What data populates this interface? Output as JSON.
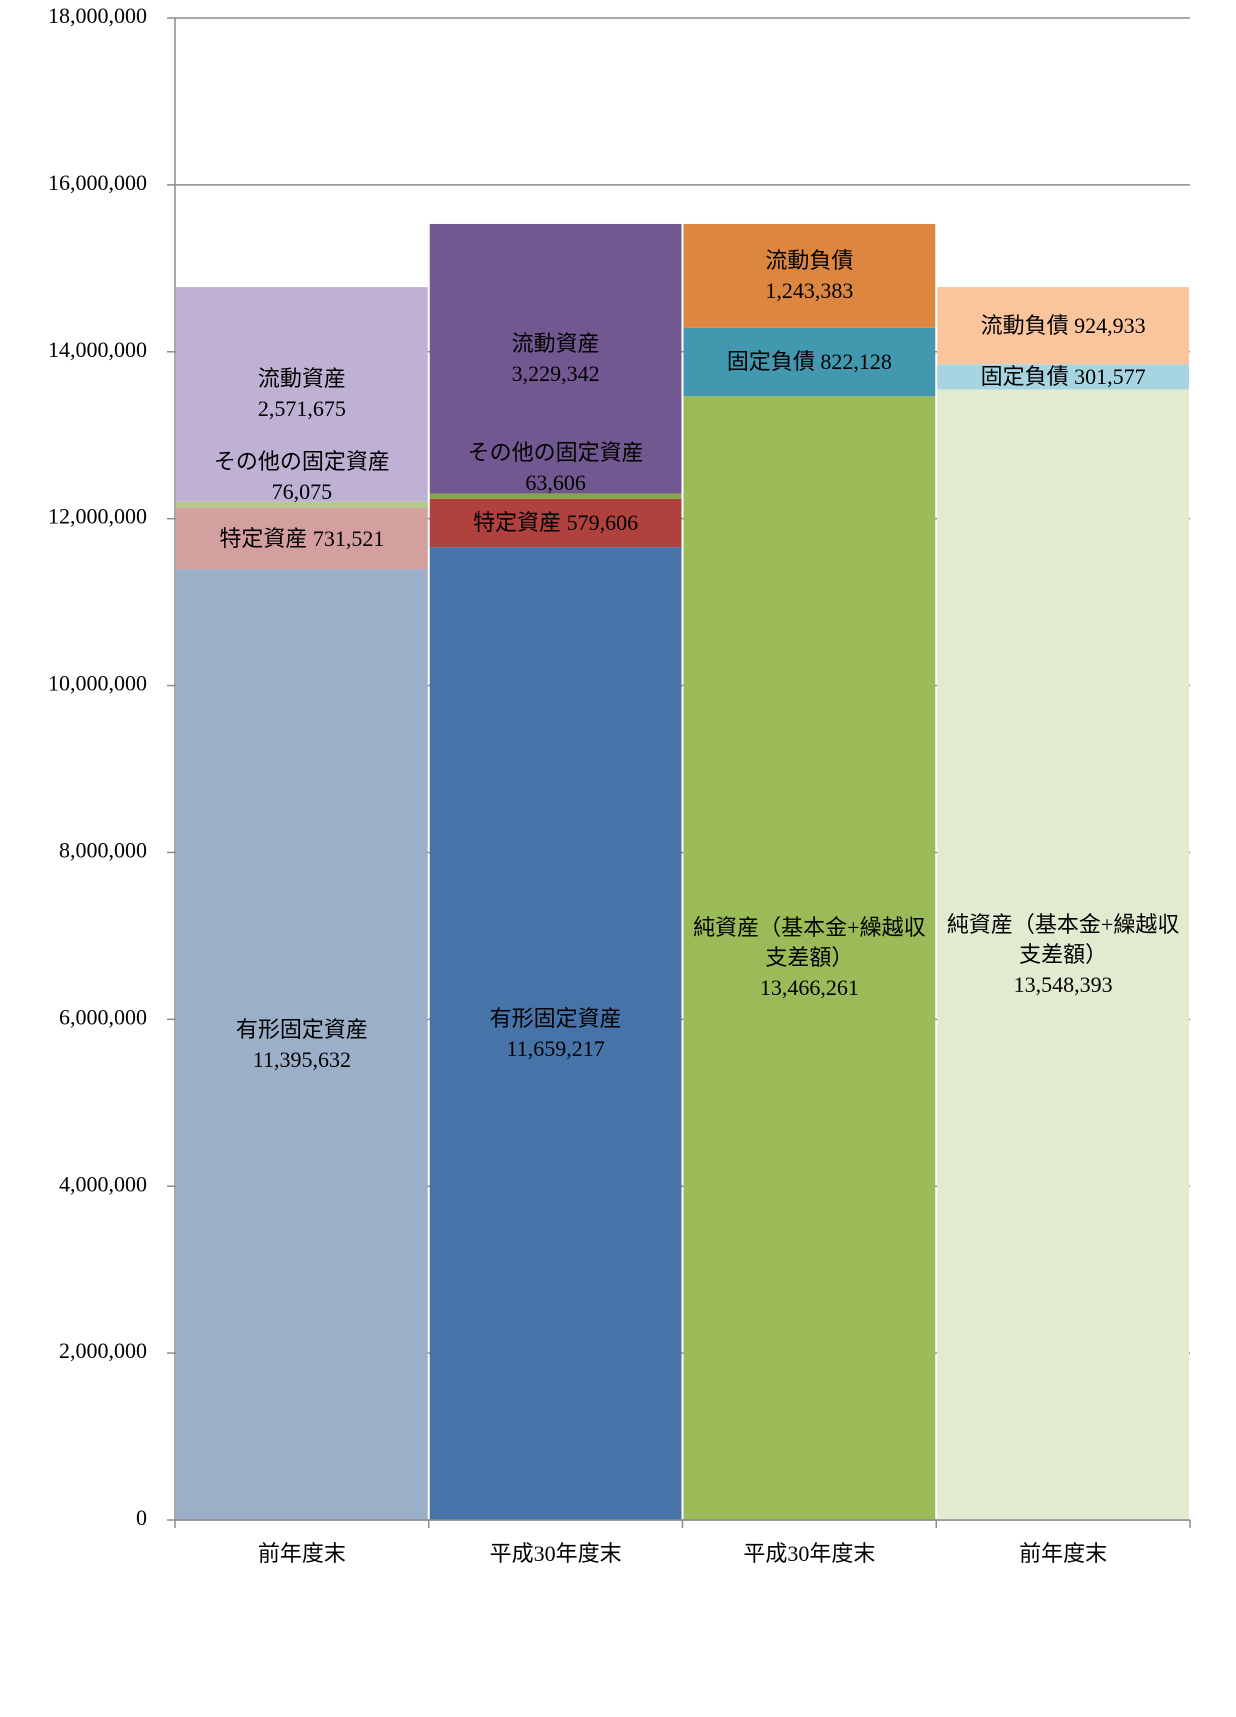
{
  "chart_data": {
    "type": "stacked_bar",
    "categories": [
      "前年度末",
      "平成30年度末",
      "平成30年度末",
      "前年度末"
    ],
    "series": [
      {
        "name": "有形固定資産",
        "values": [
          11395632,
          11659217,
          null,
          null
        ],
        "value_labels": [
          "11,395,632",
          "11,659,217",
          null,
          null
        ],
        "colors": [
          "#9bafc9",
          "#4674a8",
          null,
          null
        ]
      },
      {
        "name": "特定資産",
        "values": [
          731521,
          579606,
          null,
          null
        ],
        "value_labels": [
          "731,521",
          "579,606",
          null,
          null
        ],
        "colors": [
          "#d4a09f",
          "#b0413e",
          null,
          null
        ]
      },
      {
        "name": "その他の固定資産",
        "values": [
          76075,
          63606,
          null,
          null
        ],
        "value_labels": [
          "76,075",
          "63,606",
          null,
          null
        ],
        "colors": [
          "#b5c98b",
          "#86a44a",
          null,
          null
        ]
      },
      {
        "name": "流動資産",
        "values": [
          2571675,
          3229342,
          null,
          null
        ],
        "value_labels": [
          "2,571,675",
          "3,229,342",
          null,
          null
        ],
        "colors": [
          "#bfb1d3",
          "#725891",
          null,
          null
        ]
      },
      {
        "name": "純資産（基本金+繰越収支差額）",
        "values": [
          null,
          null,
          13466261,
          13548393
        ],
        "value_labels": [
          null,
          null,
          "13,466,261",
          "13,548,393"
        ],
        "colors": [
          null,
          null,
          "#9bbb59",
          "#e2ebd0"
        ]
      },
      {
        "name": "固定負債",
        "values": [
          null,
          null,
          822128,
          301577
        ],
        "value_labels": [
          null,
          null,
          "822,128",
          "301,577"
        ],
        "colors": [
          null,
          null,
          "#4198af",
          "#a6d4e0"
        ]
      },
      {
        "name": "流動負債",
        "values": [
          null,
          null,
          1243383,
          924933
        ],
        "value_labels": [
          null,
          null,
          "1,243,383",
          "924,933"
        ],
        "colors": [
          null,
          null,
          "#dd8640",
          "#fac49c"
        ]
      }
    ],
    "ylim": [
      0,
      18000000
    ],
    "yticks": [
      0,
      {
        "value": 2000000,
        "label": "2,000,000"
      },
      {
        "value": 4000000,
        "label": "4,000,000"
      },
      {
        "value": 6000000,
        "label": "6,000,000"
      },
      {
        "value": 8000000,
        "label": "8,000,000"
      },
      {
        "value": 10000000,
        "label": "10,000,000"
      },
      {
        "value": 12000000,
        "label": "12,000,000"
      },
      {
        "value": 14000000,
        "label": "14,000,000"
      },
      {
        "value": 16000000,
        "label": "16,000,000"
      },
      {
        "value": 18000000,
        "label": "18,000,000"
      }
    ],
    "grid": true
  }
}
